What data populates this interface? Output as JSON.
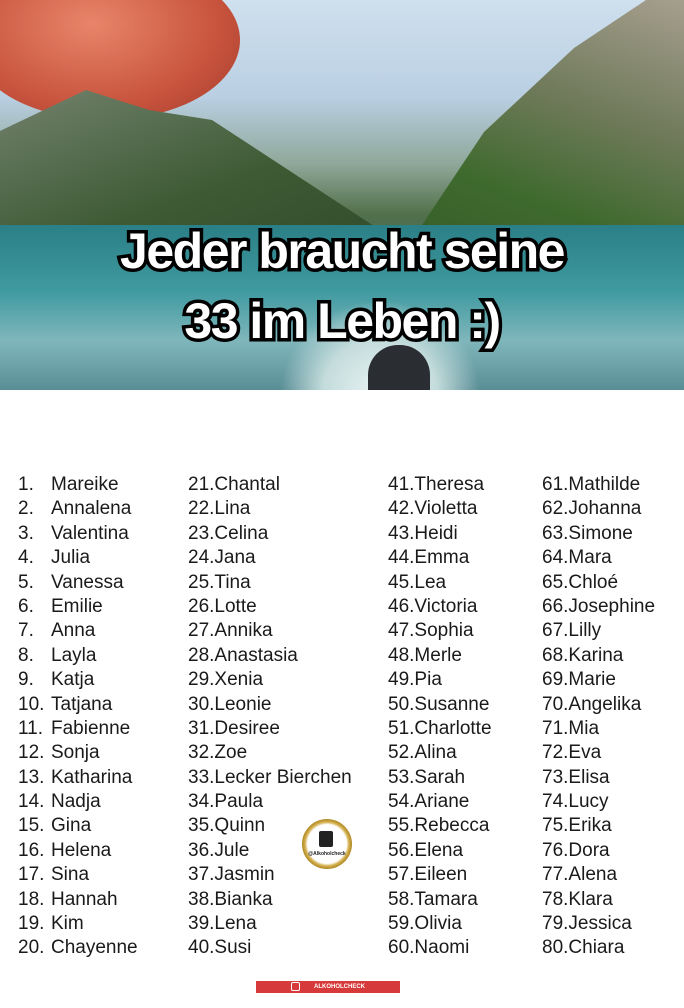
{
  "headline": {
    "line1": "Jeder braucht seine",
    "line2": "33 im Leben :)"
  },
  "names": [
    "Mareike",
    "Annalena",
    "Valentina",
    "Julia",
    "Vanessa",
    "Emilie",
    "Anna",
    "Layla",
    "Katja",
    "Tatjana",
    "Fabienne",
    "Sonja",
    "Katharina",
    "Nadja",
    "Gina",
    "Helena",
    "Sina",
    "Hannah",
    "Kim",
    "Chayenne",
    "Chantal",
    "Lina",
    "Celina",
    "Jana",
    "Tina",
    "Lotte",
    "Annika",
    "Anastasia",
    "Xenia",
    "Leonie",
    "Desiree",
    "Zoe",
    "Lecker Bierchen",
    "Paula",
    "Quinn",
    "Jule",
    "Jasmin",
    "Bianka",
    "Lena",
    "Susi",
    "Theresa",
    "Violetta",
    "Heidi",
    "Emma",
    "Lea",
    "Victoria",
    "Sophia",
    "Merle",
    "Pia",
    "Susanne",
    "Charlotte",
    "Alina",
    "Sarah",
    "Ariane",
    "Rebecca",
    "Elena",
    "Eileen",
    "Tamara",
    "Olivia",
    "Naomi",
    "Mathilde",
    "Johanna",
    "Simone",
    "Mara",
    "Chloé",
    "Josephine",
    "Lilly",
    "Karina",
    "Marie",
    "Angelika",
    "Mia",
    "Eva",
    "Elisa",
    "Lucy",
    "Erika",
    "Dora",
    "Alena",
    "Klara",
    "Jessica",
    "Chiara"
  ],
  "logo": {
    "text": "@Alkoholcheck"
  },
  "watermark": {
    "text": "ALKOHOLCHECK",
    "icon": "instagram-icon",
    "color": "#d63a3a"
  }
}
